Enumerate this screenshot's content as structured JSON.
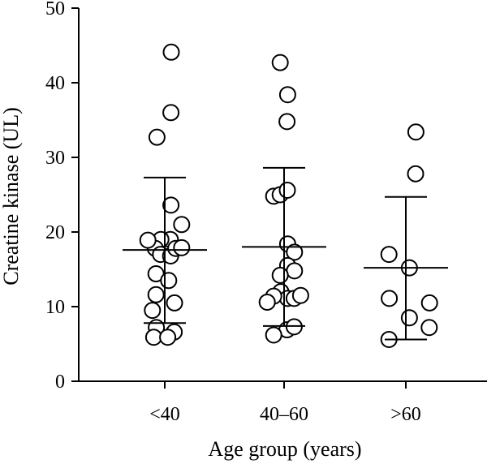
{
  "chart_data": {
    "type": "scatter",
    "xlabel": "Age group (years)",
    "ylabel": "Creatine kinase (UL)",
    "categories": [
      "<40",
      "40–60",
      ">60"
    ],
    "ylim": [
      0,
      50
    ],
    "yticks": [
      0,
      10,
      20,
      30,
      40,
      50
    ],
    "grid": false,
    "marker": "open-circle",
    "groups": [
      {
        "category": "<40",
        "mean": 17.6,
        "sd_upper": 27.3,
        "sd_lower": 7.8,
        "points": [
          {
            "offset": 0.2,
            "y": 44.1
          },
          {
            "offset": 0.19,
            "y": 36.0
          },
          {
            "offset": -0.24,
            "y": 32.7
          },
          {
            "offset": 0.19,
            "y": 23.6
          },
          {
            "offset": 0.11,
            "y": 18.1
          },
          {
            "offset": 0.17,
            "y": 19.0
          },
          {
            "offset": -0.12,
            "y": 19.0
          },
          {
            "offset": -0.29,
            "y": 17.8
          },
          {
            "offset": -0.13,
            "y": 17.0
          },
          {
            "offset": 0.18,
            "y": 16.8
          },
          {
            "offset": 0.34,
            "y": 17.8
          },
          {
            "offset": 0.52,
            "y": 17.9
          },
          {
            "offset": 0.52,
            "y": 21.0
          },
          {
            "offset": -0.52,
            "y": 18.9
          },
          {
            "offset": -0.27,
            "y": 14.4
          },
          {
            "offset": 0.12,
            "y": 13.5
          },
          {
            "offset": -0.27,
            "y": 11.6
          },
          {
            "offset": 0.3,
            "y": 10.5
          },
          {
            "offset": -0.38,
            "y": 9.5
          },
          {
            "offset": -0.26,
            "y": 7.2
          },
          {
            "offset": 0.29,
            "y": 6.6
          },
          {
            "offset": -0.34,
            "y": 5.9
          },
          {
            "offset": 0.09,
            "y": 5.9
          }
        ]
      },
      {
        "category": "40–60",
        "mean": 18.0,
        "sd_upper": 28.6,
        "sd_lower": 7.4,
        "points": [
          {
            "offset": -0.12,
            "y": 42.7
          },
          {
            "offset": 0.11,
            "y": 38.4
          },
          {
            "offset": 0.09,
            "y": 34.8
          },
          {
            "offset": -0.32,
            "y": 24.8
          },
          {
            "offset": -0.12,
            "y": 25.0
          },
          {
            "offset": 0.1,
            "y": 25.6
          },
          {
            "offset": 0.11,
            "y": 18.4
          },
          {
            "offset": 0.32,
            "y": 17.3
          },
          {
            "offset": 0.11,
            "y": 15.5
          },
          {
            "offset": 0.32,
            "y": 14.8
          },
          {
            "offset": -0.12,
            "y": 14.2
          },
          {
            "offset": -0.1,
            "y": 12.0
          },
          {
            "offset": 0.11,
            "y": 11.1
          },
          {
            "offset": 0.31,
            "y": 11.1
          },
          {
            "offset": 0.51,
            "y": 11.5
          },
          {
            "offset": -0.32,
            "y": 11.4
          },
          {
            "offset": -0.52,
            "y": 10.6
          },
          {
            "offset": 0.09,
            "y": 6.9
          },
          {
            "offset": 0.31,
            "y": 7.3
          },
          {
            "offset": -0.32,
            "y": 6.2
          }
        ]
      },
      {
        "category": ">60",
        "mean": 15.2,
        "sd_upper": 24.7,
        "sd_lower": 5.6,
        "points": [
          {
            "offset": 0.31,
            "y": 33.4
          },
          {
            "offset": 0.3,
            "y": 27.8
          },
          {
            "offset": -0.52,
            "y": 17.0
          },
          {
            "offset": 0.11,
            "y": 15.2
          },
          {
            "offset": -0.51,
            "y": 11.1
          },
          {
            "offset": 0.11,
            "y": 8.5
          },
          {
            "offset": 0.73,
            "y": 10.5
          },
          {
            "offset": 0.72,
            "y": 7.2
          },
          {
            "offset": -0.52,
            "y": 5.6
          }
        ]
      }
    ]
  }
}
